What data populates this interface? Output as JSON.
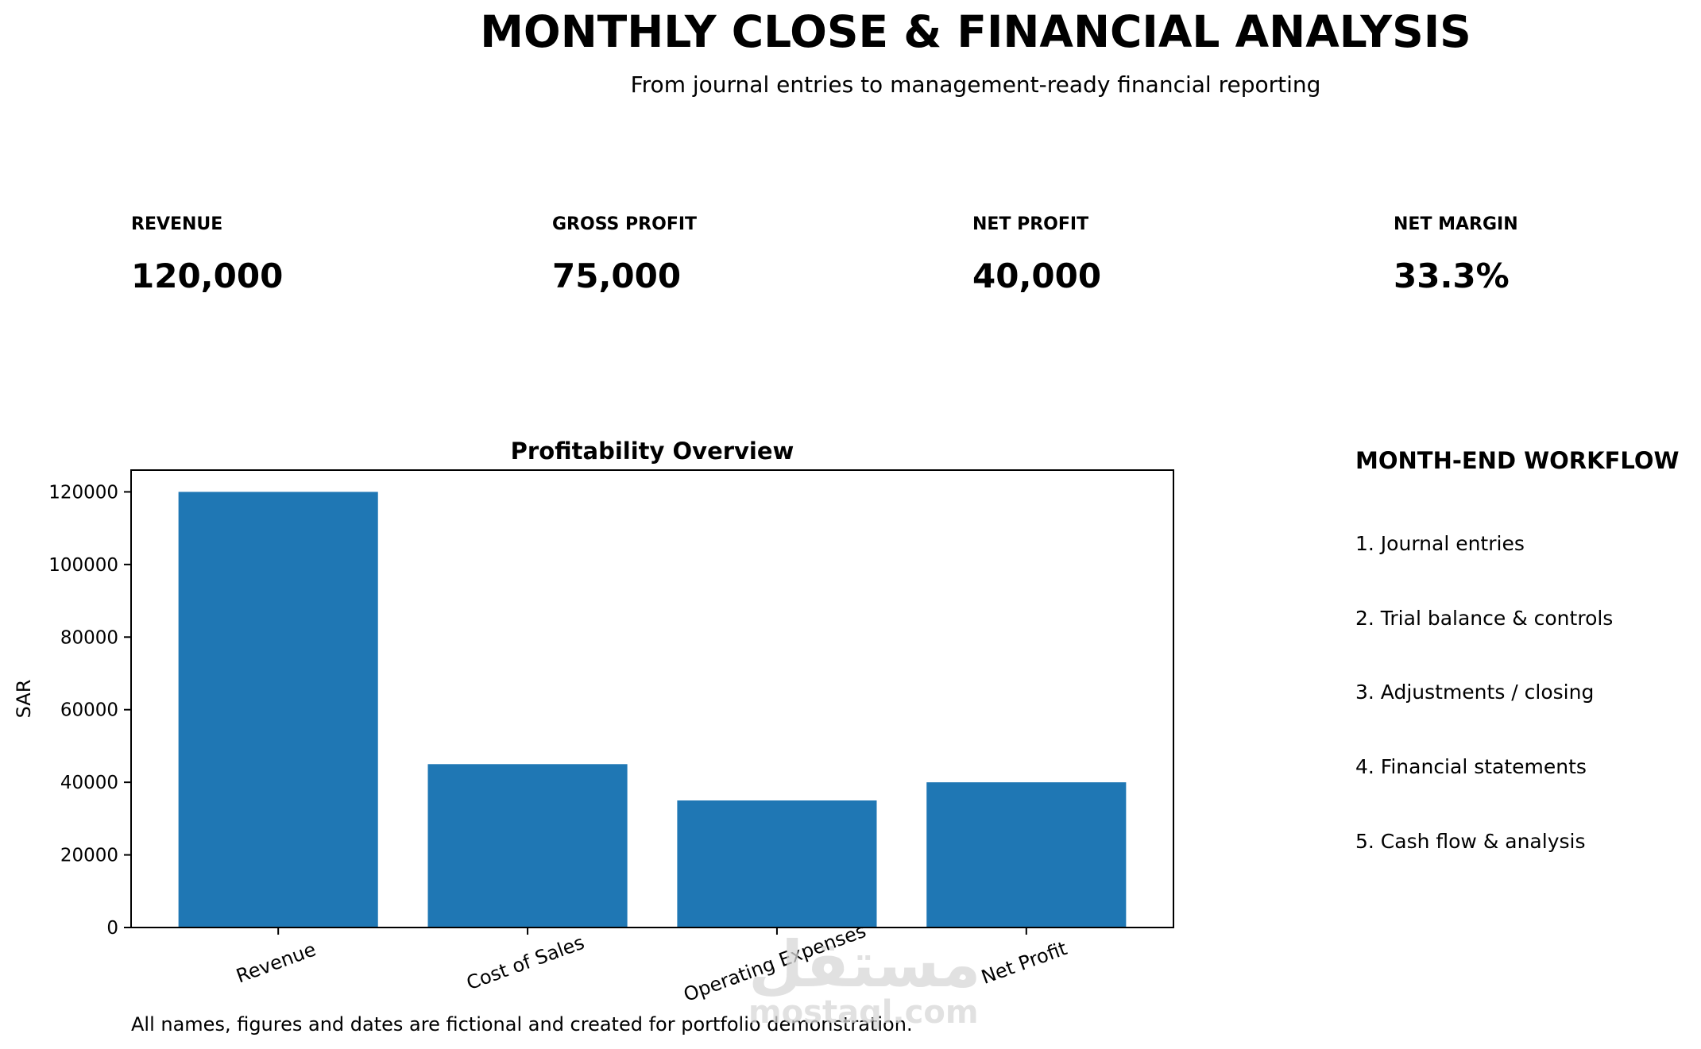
{
  "header": {
    "title": "MONTHLY CLOSE & FINANCIAL ANALYSIS",
    "subtitle": "From journal entries to management-ready financial reporting"
  },
  "kpis": [
    {
      "label": "REVENUE",
      "value": "120,000"
    },
    {
      "label": "GROSS PROFIT",
      "value": "75,000"
    },
    {
      "label": "NET PROFIT",
      "value": "40,000"
    },
    {
      "label": "NET MARGIN",
      "value": "33.3%"
    }
  ],
  "chart_data": {
    "type": "bar",
    "title": "Profitability Overview",
    "xlabel": "",
    "ylabel": "SAR",
    "categories": [
      "Revenue",
      "Cost of Sales",
      "Operating Expenses",
      "Net Profit"
    ],
    "values": [
      120000,
      45000,
      35000,
      40000
    ],
    "ylim": [
      0,
      126000
    ],
    "yticks": [
      0,
      20000,
      40000,
      60000,
      80000,
      100000,
      120000
    ],
    "bar_color": "#1f77b4",
    "grid": false,
    "legend": "none",
    "x_tick_rotation_deg": 20
  },
  "workflow": {
    "title": "MONTH-END WORKFLOW",
    "steps": [
      "1. Journal entries",
      "2. Trial balance & controls",
      "3. Adjustments / closing",
      "4. Financial statements",
      "5. Cash flow & analysis"
    ]
  },
  "footnote": "All names, figures and dates are fictional and created for portfolio demonstration.",
  "watermark": {
    "arabic": "مستقل",
    "latin": "mostaql.com"
  }
}
